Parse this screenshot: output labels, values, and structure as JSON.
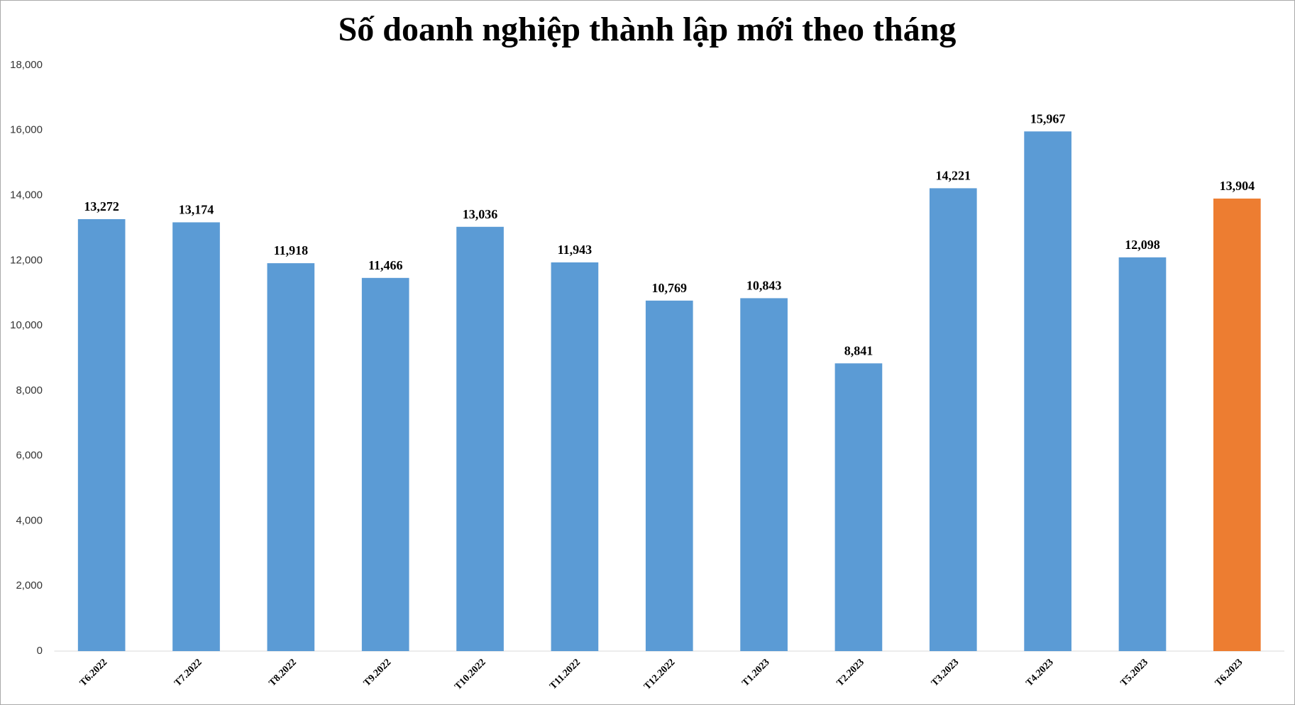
{
  "chart_data": {
    "type": "bar",
    "title": "Số doanh nghiệp thành lập mới theo tháng",
    "categories": [
      "T6.2022",
      "T7.2022",
      "T8.2022",
      "T9.2022",
      "T10.2022",
      "T11.2022",
      "T12.2022",
      "T1.2023",
      "T2.2023",
      "T3.2023",
      "T4.2023",
      "T5.2023",
      "T6.2023"
    ],
    "values": [
      13272,
      13174,
      11918,
      11466,
      13036,
      11943,
      10769,
      10843,
      8841,
      14221,
      15967,
      12098,
      13904
    ],
    "value_labels": [
      "13,272",
      "13,174",
      "11,918",
      "11,466",
      "13,036",
      "11,943",
      "10,769",
      "10,843",
      "8,841",
      "14,221",
      "15,967",
      "12,098",
      "13,904"
    ],
    "colors": [
      "#5b9bd5",
      "#5b9bd5",
      "#5b9bd5",
      "#5b9bd5",
      "#5b9bd5",
      "#5b9bd5",
      "#5b9bd5",
      "#5b9bd5",
      "#5b9bd5",
      "#5b9bd5",
      "#5b9bd5",
      "#5b9bd5",
      "#ed7d31"
    ],
    "ylim": [
      0,
      18000
    ],
    "yticks": [
      0,
      {
        "value": 2000,
        "label": "2,000"
      },
      {
        "value": 4000,
        "label": "4,000"
      },
      {
        "value": 6000,
        "label": "6,000"
      },
      {
        "value": 8000,
        "label": "8,000"
      },
      {
        "value": 10000,
        "label": "10,000"
      },
      {
        "value": 12000,
        "label": "12,000"
      },
      {
        "value": 14000,
        "label": "14,000"
      },
      {
        "value": 16000,
        "label": "16,000"
      },
      {
        "value": 18000,
        "label": "18,000"
      }
    ],
    "grid": false
  }
}
